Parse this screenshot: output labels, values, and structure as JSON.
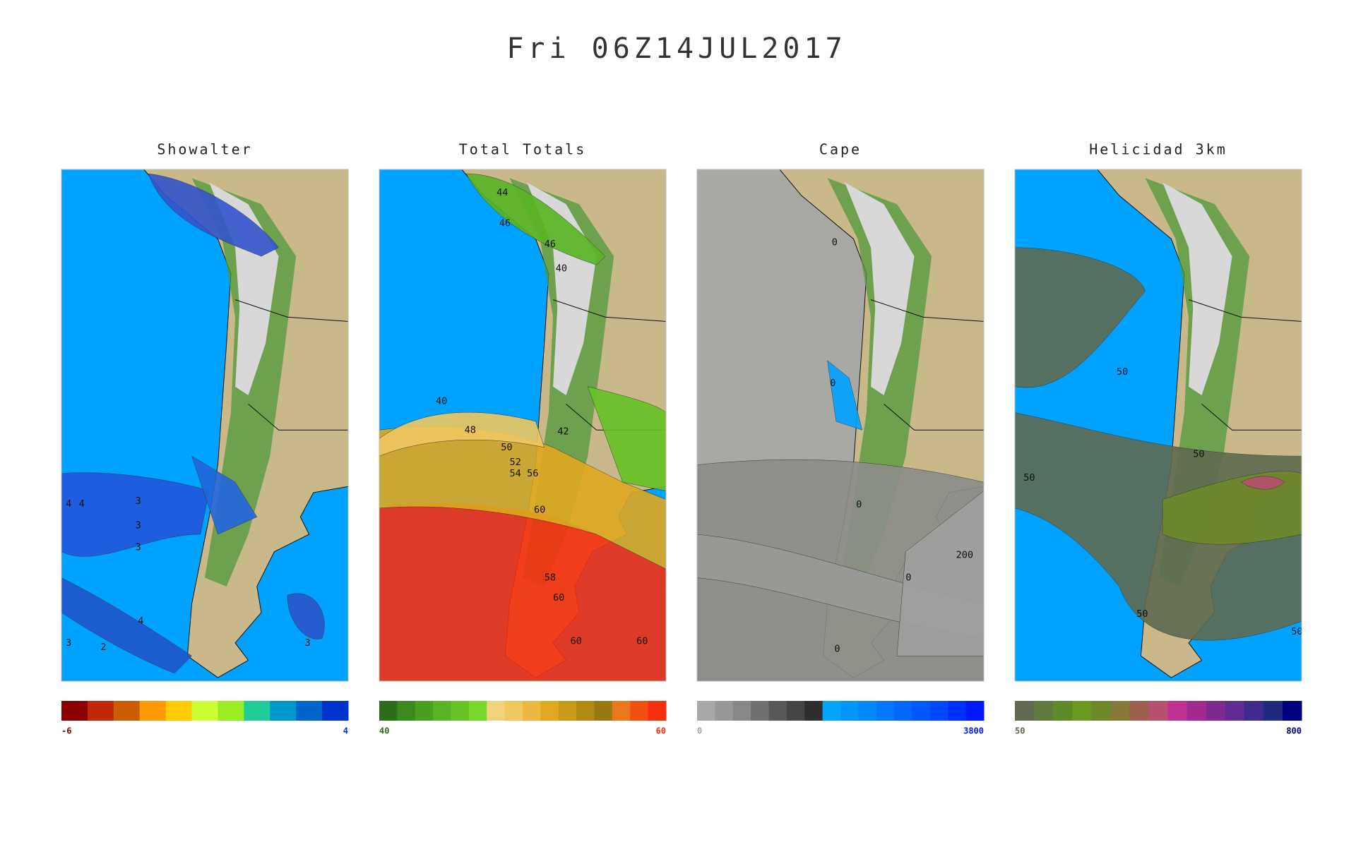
{
  "title": "Fri 06Z14JUL2017",
  "panels": [
    {
      "title": "Showalter",
      "colorbar": {
        "min": -6,
        "max": 4,
        "colors": [
          "#8b0000",
          "#c1290a",
          "#cc5c00",
          "#ff9900",
          "#ffcc00",
          "#ccff33",
          "#99ee22",
          "#22cc99",
          "#0099cc",
          "#0066cc",
          "#0033cc"
        ]
      },
      "contour_labels": [
        4,
        3,
        3,
        3,
        4,
        3,
        2,
        4,
        3
      ]
    },
    {
      "title": "Total Totals",
      "colorbar": {
        "min": 40,
        "max": 60,
        "colors": [
          "#2d6e1a",
          "#3a8a1e",
          "#48a020",
          "#58b422",
          "#66c424",
          "#7ad82a",
          "#f2d27a",
          "#f0c860",
          "#ecb840",
          "#e0a820",
          "#c89a18",
          "#b08a10",
          "#987a10",
          "#e8781a",
          "#f25010",
          "#f53010"
        ]
      },
      "contour_labels": [
        44,
        46,
        46,
        40,
        40,
        42,
        48,
        50,
        52,
        54,
        56,
        60,
        58,
        60,
        60,
        60
      ]
    },
    {
      "title": "Cape",
      "colorbar": {
        "min": 0,
        "max": 3800,
        "colors": [
          "#a8a8a8",
          "#989898",
          "#888888",
          "#707070",
          "#585858",
          "#444444",
          "#2e2e2e",
          "#00a5ff",
          "#0096ff",
          "#0088ff",
          "#0078ff",
          "#0068ff",
          "#0058ff",
          "#0048ff",
          "#0030ff",
          "#0018ff"
        ]
      },
      "contour_labels": [
        0,
        0,
        0,
        200,
        0,
        0
      ]
    },
    {
      "title": "Helicidad 3km",
      "colorbar": {
        "min": 50,
        "max": 800,
        "colors": [
          "#5f6a50",
          "#5f7a3c",
          "#5f8a2a",
          "#6a9a20",
          "#6f8a2a",
          "#8a7a3a",
          "#a06050",
          "#b85070",
          "#c03090",
          "#a02a90",
          "#802a90",
          "#602a90",
          "#402a90",
          "#202a80",
          "#000080"
        ]
      },
      "contour_labels": [
        50,
        50,
        50,
        50,
        50
      ]
    }
  ]
}
